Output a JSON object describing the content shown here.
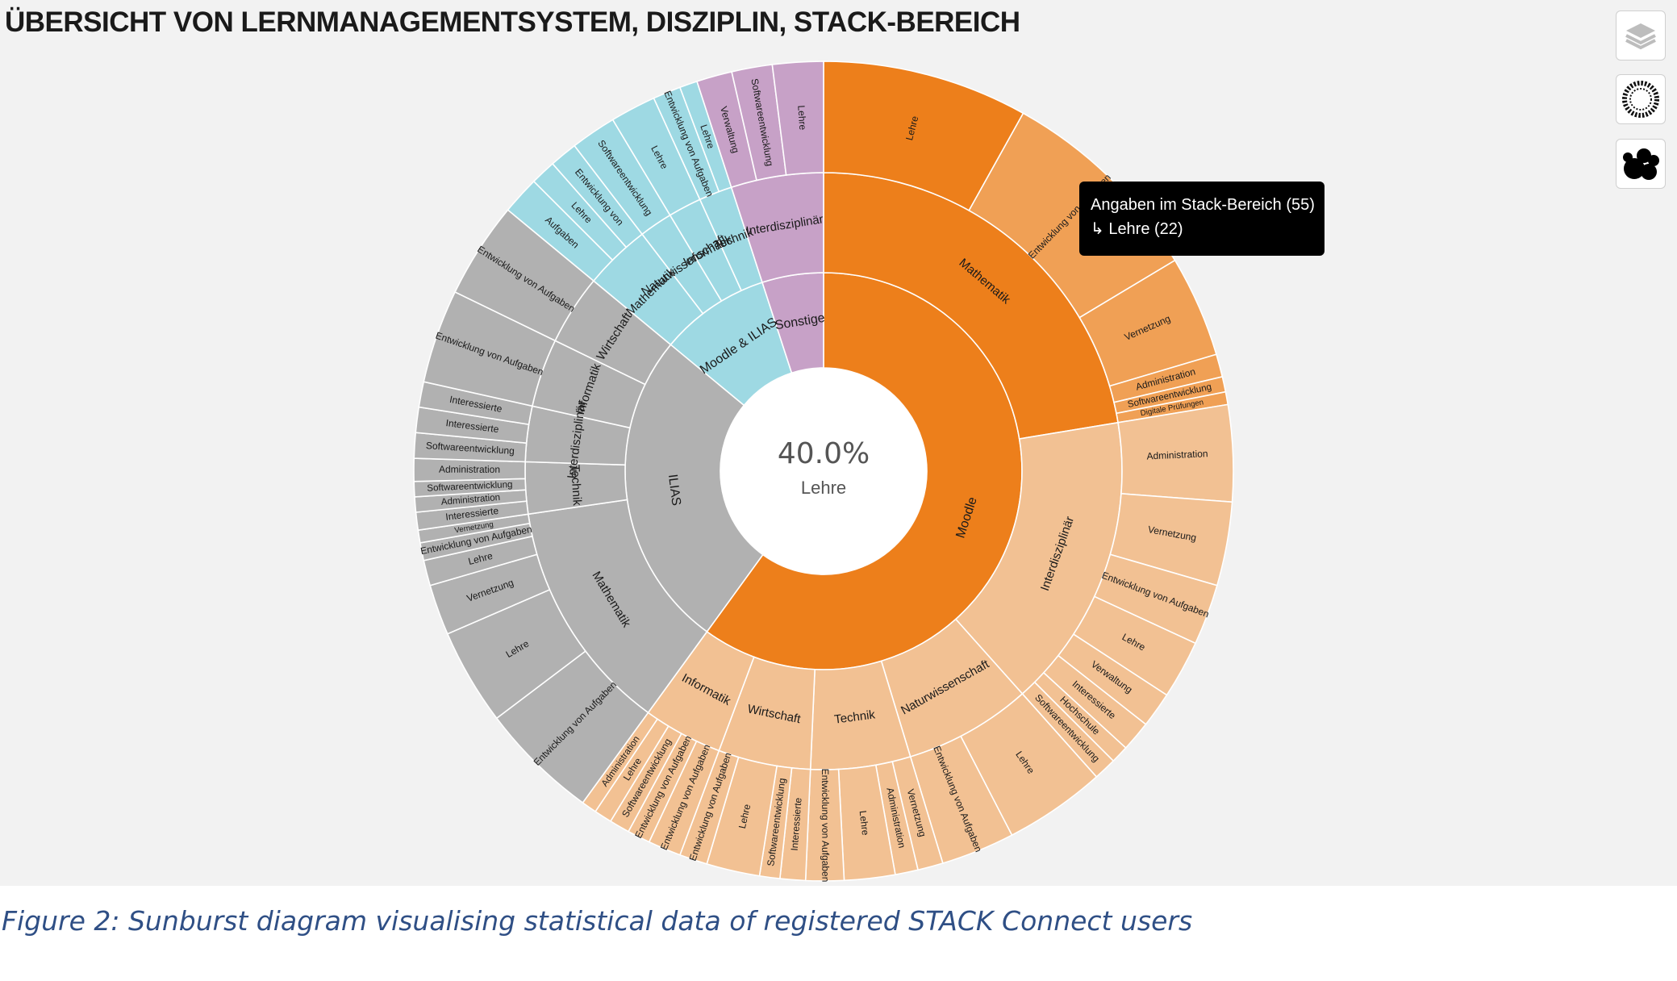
{
  "title": "ÜBERSICHT VON LERNMANAGEMENTSYSTEM, DISZIPLIN, STACK-BEREICH",
  "caption": "Figure 2: Sunburst diagram visualising statistical data of registered STACK Connect users",
  "tooltip": {
    "line1": "Angaben im Stack-Bereich (55)",
    "line2": "↳ Lehre (22)"
  },
  "toolbar": [
    {
      "name": "layers-icon"
    },
    {
      "name": "sunburst-icon"
    },
    {
      "name": "bubbles-icon"
    }
  ],
  "colors": {
    "Moodle": "#ed7f1b",
    "Moodle_light": "#f2c193",
    "Moodle_mid": "#f0a055",
    "ILIAS": "#b1b1b1",
    "Moodle & ILIAS": "#9ed9e3",
    "Sonstige": "#c7a1c7",
    "background": "#f2f2f2",
    "caption": "#2f4f85"
  },
  "chart_data": {
    "type": "sunburst",
    "title": "ÜBERSICHT VON LERNMANAGEMENTSYSTEM, DISZIPLIN, STACK-BEREICH",
    "center": {
      "value": "40.0%",
      "label": "Lehre"
    },
    "tree": [
      {
        "name": "Moodle",
        "value": 60,
        "children": [
          {
            "name": "Mathematik",
            "value": 22.4,
            "children": [
              {
                "name": "Lehre",
                "value": 8.1
              },
              {
                "name": "Entwicklung von Aufgaben",
                "value": 8.3
              },
              {
                "name": "Vernetzung",
                "value": 4.0
              },
              {
                "name": "Administration",
                "value": 0.9
              },
              {
                "name": "Softwareentwicklung",
                "value": 0.6
              },
              {
                "name": "Digitale Prüfungen",
                "value": 0.5
              }
            ]
          },
          {
            "name": "Interdisziplinär",
            "value": 16.0,
            "children": [
              {
                "name": "Administration",
                "value": 3.8
              },
              {
                "name": "Vernetzung",
                "value": 3.3
              },
              {
                "name": "Entwicklung von Aufgaben",
                "value": 2.4
              },
              {
                "name": "Lehre",
                "value": 2.3
              },
              {
                "name": "Verwaltung",
                "value": 1.4
              },
              {
                "name": "Interessierte",
                "value": 1.2
              },
              {
                "name": "Hochschule",
                "value": 0.7
              },
              {
                "name": "Softwareentwicklung",
                "value": 0.9
              }
            ]
          },
          {
            "name": "Naturwissenschaft",
            "value": 6.9,
            "children": [
              {
                "name": "Lehre",
                "value": 4.0
              },
              {
                "name": "Entwicklung von Aufgaben",
                "value": 2.9
              }
            ]
          },
          {
            "name": "Technik",
            "value": 5.4,
            "children": [
              {
                "name": "Vernetzung",
                "value": 1.0
              },
              {
                "name": "Administration",
                "value": 0.9
              },
              {
                "name": "Lehre",
                "value": 2.0
              },
              {
                "name": "Entwicklung von Aufgaben",
                "value": 1.5
              }
            ]
          },
          {
            "name": "Wirtschaft",
            "value": 5.0,
            "children": [
              {
                "name": "Interessierte",
                "value": 1.0
              },
              {
                "name": "Softwareentwicklung",
                "value": 0.8
              },
              {
                "name": "Lehre",
                "value": 2.1
              },
              {
                "name": "Entwicklung von Aufgaben",
                "value": 1.1
              }
            ]
          },
          {
            "name": "Informatik",
            "value": 4.3,
            "children": [
              {
                "name": "Entwicklung von Aufgaben",
                "value": 1.3
              },
              {
                "name": "Entwicklung von Aufgaben",
                "value": 0.9
              },
              {
                "name": "Softwareentwicklung",
                "value": 0.8
              },
              {
                "name": "Lehre",
                "value": 0.7
              },
              {
                "name": "Administration",
                "value": 0.6
              }
            ]
          }
        ]
      },
      {
        "name": "ILIAS",
        "value": 26,
        "children": [
          {
            "name": "Mathematik",
            "value": 12.7,
            "children": [
              {
                "name": "Entwicklung von Aufgaben",
                "value": 4.7
              },
              {
                "name": "Lehre",
                "value": 3.8
              },
              {
                "name": "Vernetzung",
                "value": 2.0
              },
              {
                "name": "Lehre",
                "value": 1.0
              },
              {
                "name": "Entwicklung von Aufgaben",
                "value": 0.7
              },
              {
                "name": "Vernetzung",
                "value": 0.5
              }
            ]
          },
          {
            "name": "Technik",
            "value": 2.8,
            "children": [
              {
                "name": "Interessierte",
                "value": 0.7
              },
              {
                "name": "Administration",
                "value": 0.6
              },
              {
                "name": "Softwareentwicklung",
                "value": 0.6
              },
              {
                "name": "Administration",
                "value": 0.9
              }
            ]
          },
          {
            "name": "Interdisziplinär",
            "value": 3.0,
            "children": [
              {
                "name": "Softwareentwicklung",
                "value": 1.0
              },
              {
                "name": "Interessierte",
                "value": 1.0
              },
              {
                "name": "Interessierte",
                "value": 1.0
              }
            ]
          },
          {
            "name": "Informatik",
            "value": 3.7,
            "children": [
              {
                "name": "Entwicklung von Aufgaben",
                "value": 3.7
              }
            ]
          },
          {
            "name": "Wirtschaft",
            "value": 3.8,
            "children": [
              {
                "name": "Entwicklung von Aufgaben",
                "value": 3.8
              }
            ]
          }
        ]
      },
      {
        "name": "Moodle & ILIAS",
        "value": 9,
        "children": [
          {
            "name": "Mathematik",
            "value": 3.6,
            "children": [
              {
                "name": "Aufgaben",
                "value": 1.5
              },
              {
                "name": "Lehre",
                "value": 1.0
              },
              {
                "name": "Entwicklung von",
                "value": 1.1
              }
            ]
          },
          {
            "name": "Naturwissenschaft",
            "value": 1.8,
            "children": [
              {
                "name": "Softwareentwicklung",
                "value": 1.8
              }
            ]
          },
          {
            "name": "Informatik",
            "value": 1.8,
            "children": [
              {
                "name": "Lehre",
                "value": 1.8
              }
            ]
          },
          {
            "name": "Technik",
            "value": 1.8,
            "children": [
              {
                "name": "Entwicklung von Aufgaben",
                "value": 1.1
              },
              {
                "name": "Lehre",
                "value": 0.7
              }
            ]
          }
        ]
      },
      {
        "name": "Sonstige",
        "value": 5,
        "children": [
          {
            "name": "Interdisziplinär",
            "value": 5,
            "children": [
              {
                "name": "Verwaltung",
                "value": 1.4
              },
              {
                "name": "Softwareentwicklung",
                "value": 1.6
              },
              {
                "name": "Lehre",
                "value": 2.0
              }
            ]
          }
        ]
      }
    ]
  }
}
